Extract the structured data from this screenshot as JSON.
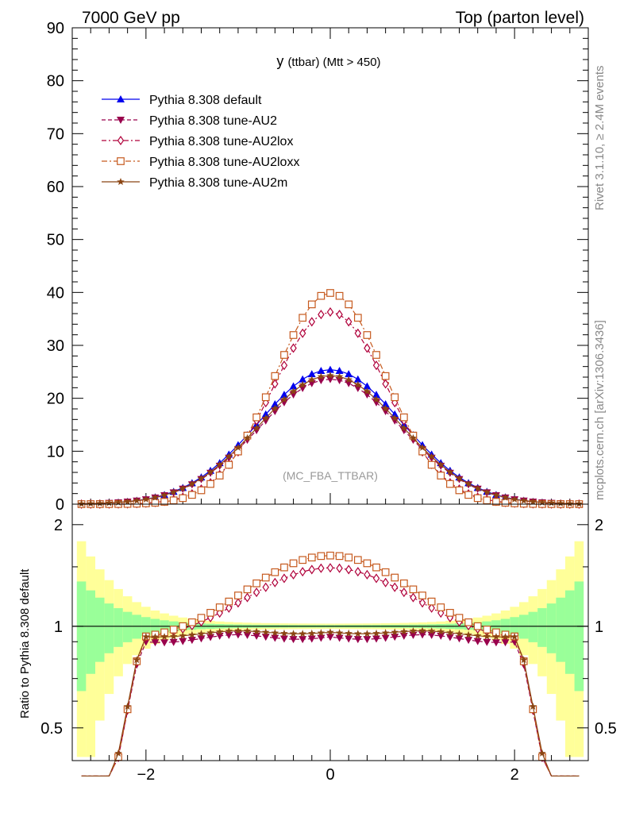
{
  "header": {
    "left": "7000 GeV pp",
    "right": "Top (parton level)"
  },
  "side_text": {
    "rivet": "Rivet 3.1.10, ≥ 2.4M events",
    "mcplots": "mcplots.cern.ch [arXiv:1306.3436]"
  },
  "chart_data": [
    {
      "type": "line",
      "title": "y",
      "title_sub": "(ttbar) (Mtt > 450)",
      "watermark": "(MC_FBA_TTBAR)",
      "xlim": [
        -2.8,
        2.8
      ],
      "ylim": [
        0,
        90
      ],
      "yticks": [
        0,
        10,
        20,
        30,
        40,
        50,
        60,
        70,
        80,
        90
      ],
      "legend_position": "top-left",
      "series": [
        {
          "name": "Pythia 8.308 default",
          "color": "#0000ee",
          "marker": "triangle-up",
          "dash": "",
          "peak": 25.4
        },
        {
          "name": "Pythia 8.308 tune-AU2",
          "color": "#99004c",
          "marker": "triangle-down",
          "dash": "5,3",
          "peak": 23.6
        },
        {
          "name": "Pythia 8.308 tune-AU2lox",
          "color": "#b0003a",
          "marker": "diamond-open",
          "dash": "6,3,2,3",
          "peak": 36.3
        },
        {
          "name": "Pythia 8.308 tune-AU2loxx",
          "color": "#c65a1e",
          "marker": "square-open",
          "dash": "7,3,2,3",
          "peak": 39.9
        },
        {
          "name": "Pythia 8.308 tune-AU2m",
          "color": "#8b4513",
          "marker": "star",
          "dash": "",
          "peak": 24.3
        }
      ]
    },
    {
      "type": "line",
      "ylabel": "Ratio to Pythia 8.308 default",
      "xlim": [
        -2.8,
        2.8
      ],
      "ylim": [
        0.4,
        2.3
      ],
      "scale": "log",
      "yticks": [
        0.5,
        1,
        2
      ],
      "xticks": [
        -2,
        0,
        2
      ],
      "series": [
        {
          "name": "Pythia 8.308 tune-AU2",
          "center": 0.93,
          "wiggle": 0.03,
          "edge_knee": 2.05
        },
        {
          "name": "Pythia 8.308 tune-AU2lox",
          "center": 1.49,
          "wiggle": 0.0,
          "edge_knee": 2.05
        },
        {
          "name": "Pythia 8.308 tune-AU2loxx",
          "center": 1.62,
          "wiggle": 0.0,
          "edge_knee": 2.05
        },
        {
          "name": "Pythia 8.308 tune-AU2m",
          "center": 0.96,
          "wiggle": 0.02,
          "edge_knee": 2.05
        }
      ],
      "band_colors": {
        "inner": "#99ff99",
        "outer": "#ffff99"
      }
    }
  ]
}
